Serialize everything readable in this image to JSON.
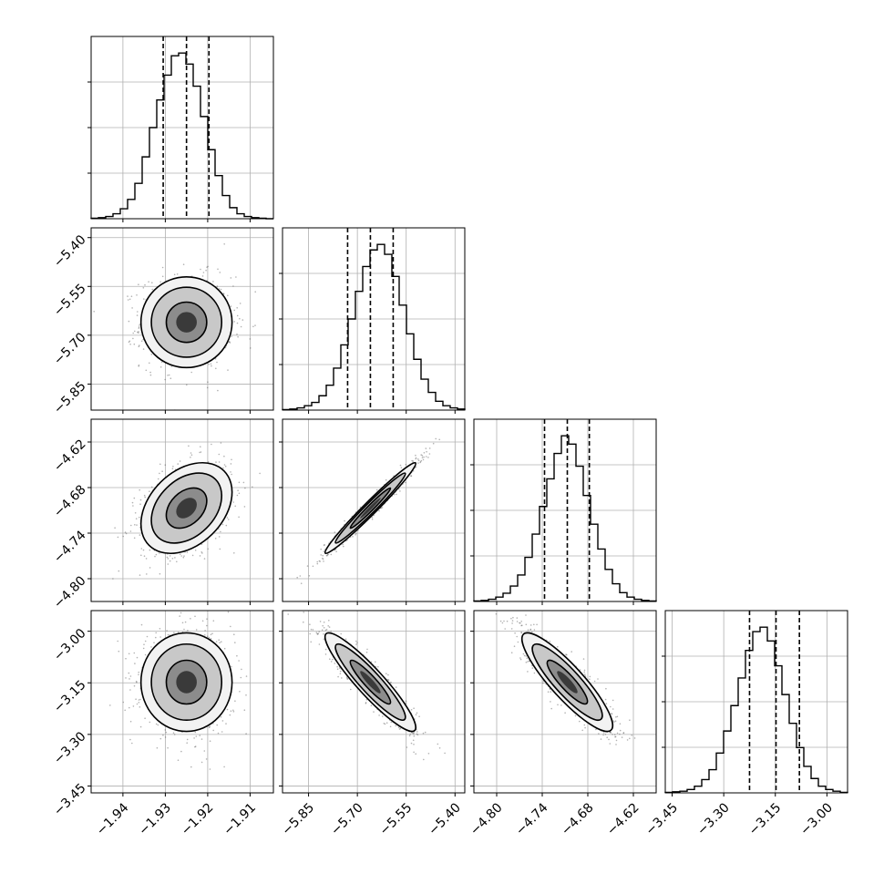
{
  "chart_data": {
    "type": "corner",
    "parameters": [
      {
        "range": [
          -1.9475,
          -1.9045
        ],
        "ticks": [
          {
            "value": -1.94,
            "label": "−1.94"
          },
          {
            "value": -1.93,
            "label": "−1.93"
          },
          {
            "value": -1.92,
            "label": "−1.92"
          },
          {
            "value": -1.91,
            "label": "−1.91"
          }
        ],
        "quantiles": [
          -1.9305,
          -1.925,
          -1.9197
        ],
        "mean": -1.925,
        "sigma": 0.0054,
        "hist_counts": [
          1,
          2,
          4,
          9,
          18,
          35,
          64,
          112,
          165,
          215,
          260,
          295,
          300,
          280,
          240,
          185,
          125,
          78,
          42,
          20,
          9,
          4,
          2,
          1,
          0
        ]
      },
      {
        "range": [
          -5.93,
          -5.37
        ],
        "ticks": [
          {
            "value": -5.85,
            "label": "−5.85"
          },
          {
            "value": -5.7,
            "label": "−5.70"
          },
          {
            "value": -5.55,
            "label": "−5.55"
          },
          {
            "value": -5.4,
            "label": "−5.40"
          }
        ],
        "quantiles": [
          -5.73,
          -5.66,
          -5.59
        ],
        "mean": -5.66,
        "sigma": 0.07,
        "hist_counts": [
          1,
          2,
          4,
          8,
          14,
          26,
          45,
          76,
          118,
          165,
          215,
          260,
          290,
          300,
          282,
          242,
          190,
          138,
          92,
          56,
          32,
          16,
          8,
          4,
          2
        ]
      },
      {
        "range": [
          -4.83,
          -4.59
        ],
        "ticks": [
          {
            "value": -4.8,
            "label": "−4.80"
          },
          {
            "value": -4.74,
            "label": "−4.74"
          },
          {
            "value": -4.68,
            "label": "−4.68"
          },
          {
            "value": -4.62,
            "label": "−4.62"
          }
        ],
        "quantiles": [
          -4.737,
          -4.707,
          -4.678
        ],
        "mean": -4.707,
        "sigma": 0.03,
        "hist_counts": [
          1,
          2,
          4,
          8,
          15,
          28,
          48,
          80,
          122,
          172,
          222,
          268,
          300,
          285,
          245,
          192,
          140,
          95,
          58,
          32,
          16,
          8,
          4,
          2,
          1
        ]
      },
      {
        "range": [
          -3.47,
          -2.94
        ],
        "ticks": [
          {
            "value": -3.45,
            "label": "−3.45"
          },
          {
            "value": -3.3,
            "label": "−3.30"
          },
          {
            "value": -3.15,
            "label": "−3.15"
          },
          {
            "value": -3.0,
            "label": "−3.00"
          }
        ],
        "quantiles": [
          -3.225,
          -3.148,
          -3.08
        ],
        "mean": -3.148,
        "sigma": 0.072,
        "hist_counts": [
          1,
          2,
          3,
          6,
          12,
          24,
          42,
          72,
          112,
          158,
          208,
          258,
          292,
          300,
          275,
          230,
          178,
          126,
          82,
          48,
          26,
          12,
          6,
          3,
          1
        ]
      }
    ],
    "correlations": [
      [
        0,
        1,
        0.0
      ],
      [
        0,
        2,
        0.35
      ],
      [
        0,
        3,
        0.0
      ],
      [
        1,
        2,
        0.98
      ],
      [
        1,
        3,
        -0.92
      ],
      [
        2,
        3,
        -0.88
      ]
    ],
    "colors": {
      "density": "#000000",
      "grid": "#b0b0b0",
      "scatter": "#555555"
    }
  }
}
